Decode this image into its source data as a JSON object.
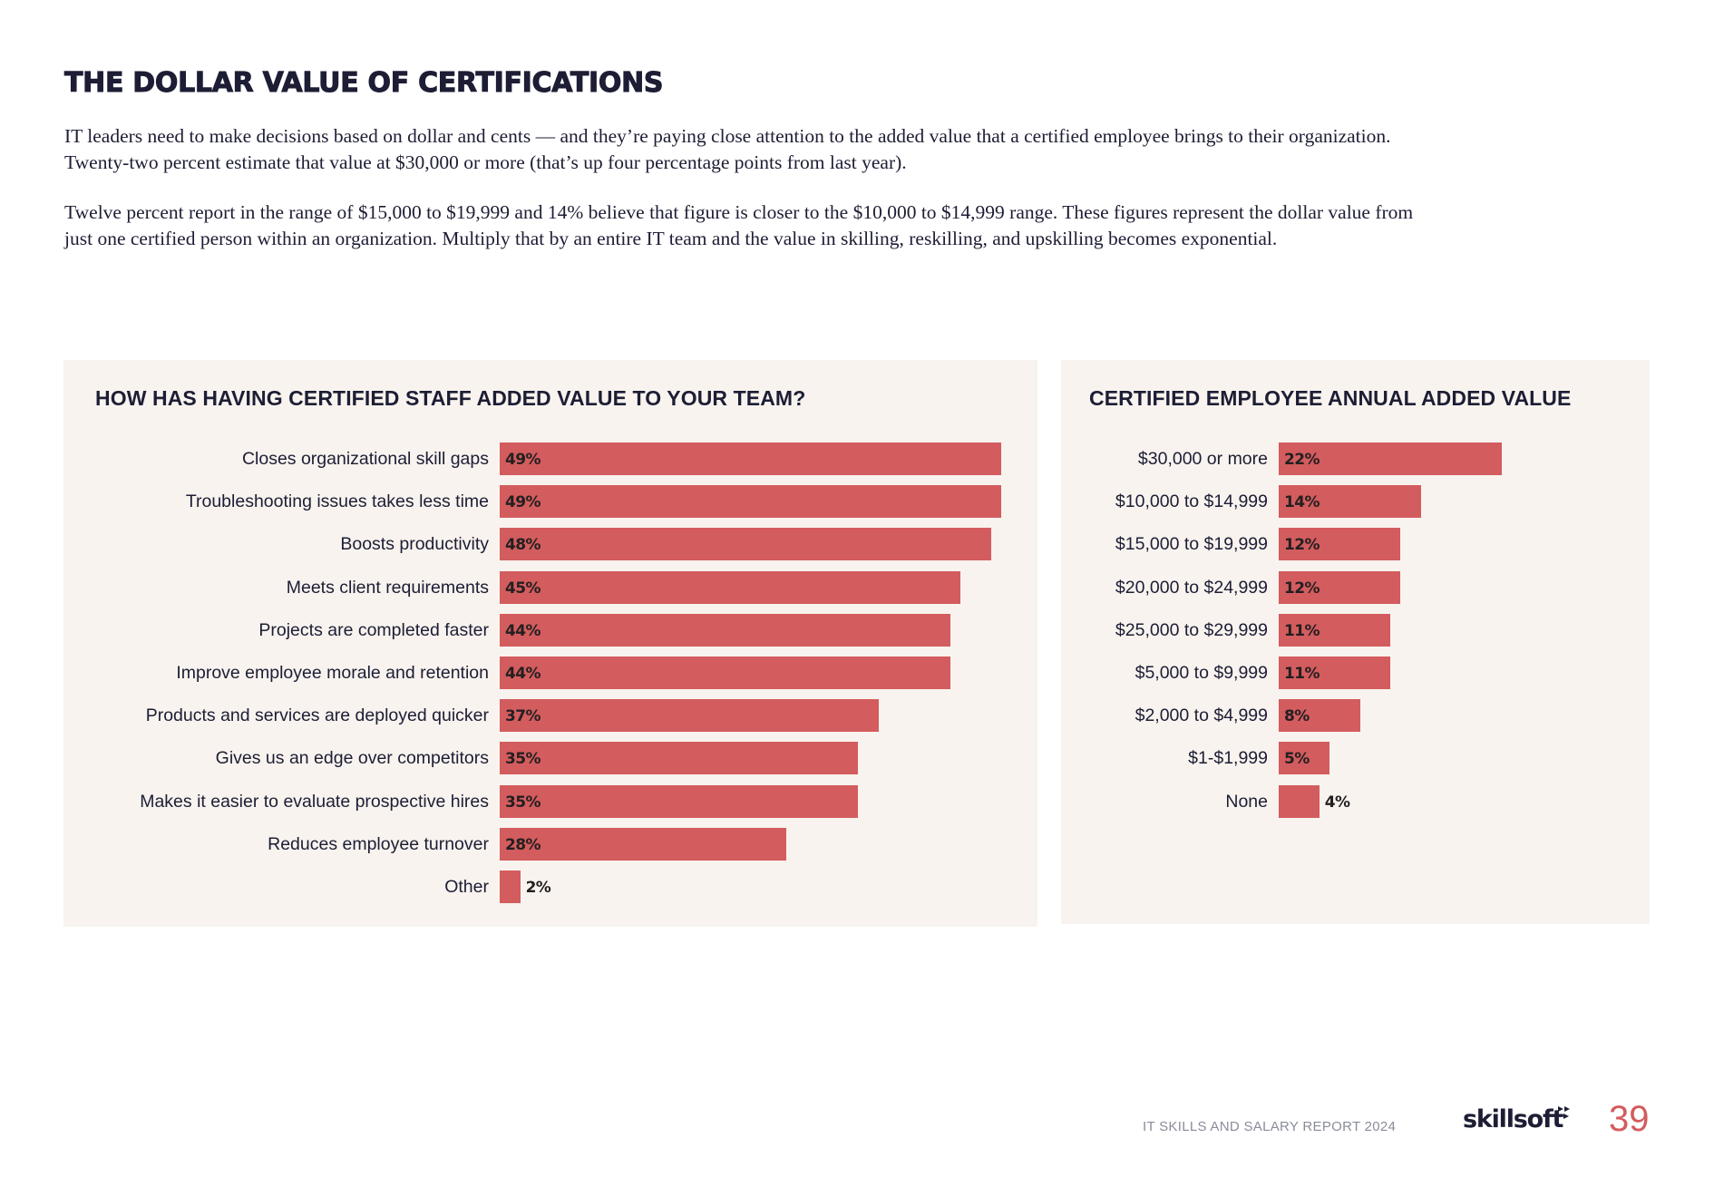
{
  "page": {
    "title": "THE DOLLAR VALUE OF CERTIFICATIONS",
    "paragraphs": [
      "IT leaders need to make decisions based on dollar and cents — and they’re paying close attention to the added value that a certified employee brings to their organization. Twenty-two percent estimate that value at $30,000 or more (that’s up four percentage points from last year).",
      "Twelve percent report in the range of $15,000 to $19,999 and 14% believe that figure is closer to the $10,000 to $14,999 range. These figures represent the dollar value from just one certified person within an organization. Multiply that by an entire IT team and the value in skilling, reskilling, and upskilling becomes exponential."
    ]
  },
  "colors": {
    "bar": "#d35c5e",
    "panel_bg": "#f8f3ee",
    "text": "#1d1d35",
    "accent": "#d35c5e"
  },
  "chart_data": [
    {
      "type": "bar",
      "orientation": "horizontal",
      "title": "HOW HAS HAVING CERTIFIED STAFF ADDED VALUE TO YOUR TEAM?",
      "xlabel": "",
      "ylabel": "",
      "unit": "%",
      "grid": false,
      "categories": [
        "Closes organizational skill gaps",
        "Troubleshooting issues takes less time",
        "Boosts productivity",
        "Meets client requirements",
        "Projects are completed faster",
        "Improve employee morale and retention",
        "Products and services are deployed quicker",
        "Gives us an edge over competitors",
        "Makes it easier to evaluate prospective hires",
        "Reduces employee turnover",
        "Other"
      ],
      "values": [
        49,
        49,
        48,
        45,
        44,
        44,
        37,
        35,
        35,
        28,
        2
      ],
      "value_labels": [
        "49%",
        "49%",
        "48%",
        "45%",
        "44%",
        "44%",
        "37%",
        "35%",
        "35%",
        "28%",
        "2%"
      ],
      "xlim": [
        0,
        49
      ]
    },
    {
      "type": "bar",
      "orientation": "horizontal",
      "title": "CERTIFIED EMPLOYEE ANNUAL ADDED VALUE",
      "xlabel": "",
      "ylabel": "",
      "unit": "%",
      "grid": false,
      "categories": [
        "$30,000 or more",
        "$10,000 to $14,999",
        "$15,000 to $19,999",
        "$20,000 to $24,999",
        "$25,000 to $29,999",
        "$5,000 to $9,999",
        "$2,000 to $4,999",
        "$1-$1,999",
        "None"
      ],
      "values": [
        22,
        14,
        12,
        12,
        11,
        11,
        8,
        5,
        4
      ],
      "value_labels": [
        "22%",
        "14%",
        "12%",
        "12%",
        "11%",
        "11%",
        "8%",
        "5%",
        "4%"
      ],
      "xlim": [
        0,
        22
      ]
    }
  ],
  "footer": {
    "report_name": "IT SKILLS AND SALARY REPORT 2024",
    "logo_text": "skillsoft",
    "logo_icon": "double-play-arrow-icon",
    "page_number": "39"
  }
}
